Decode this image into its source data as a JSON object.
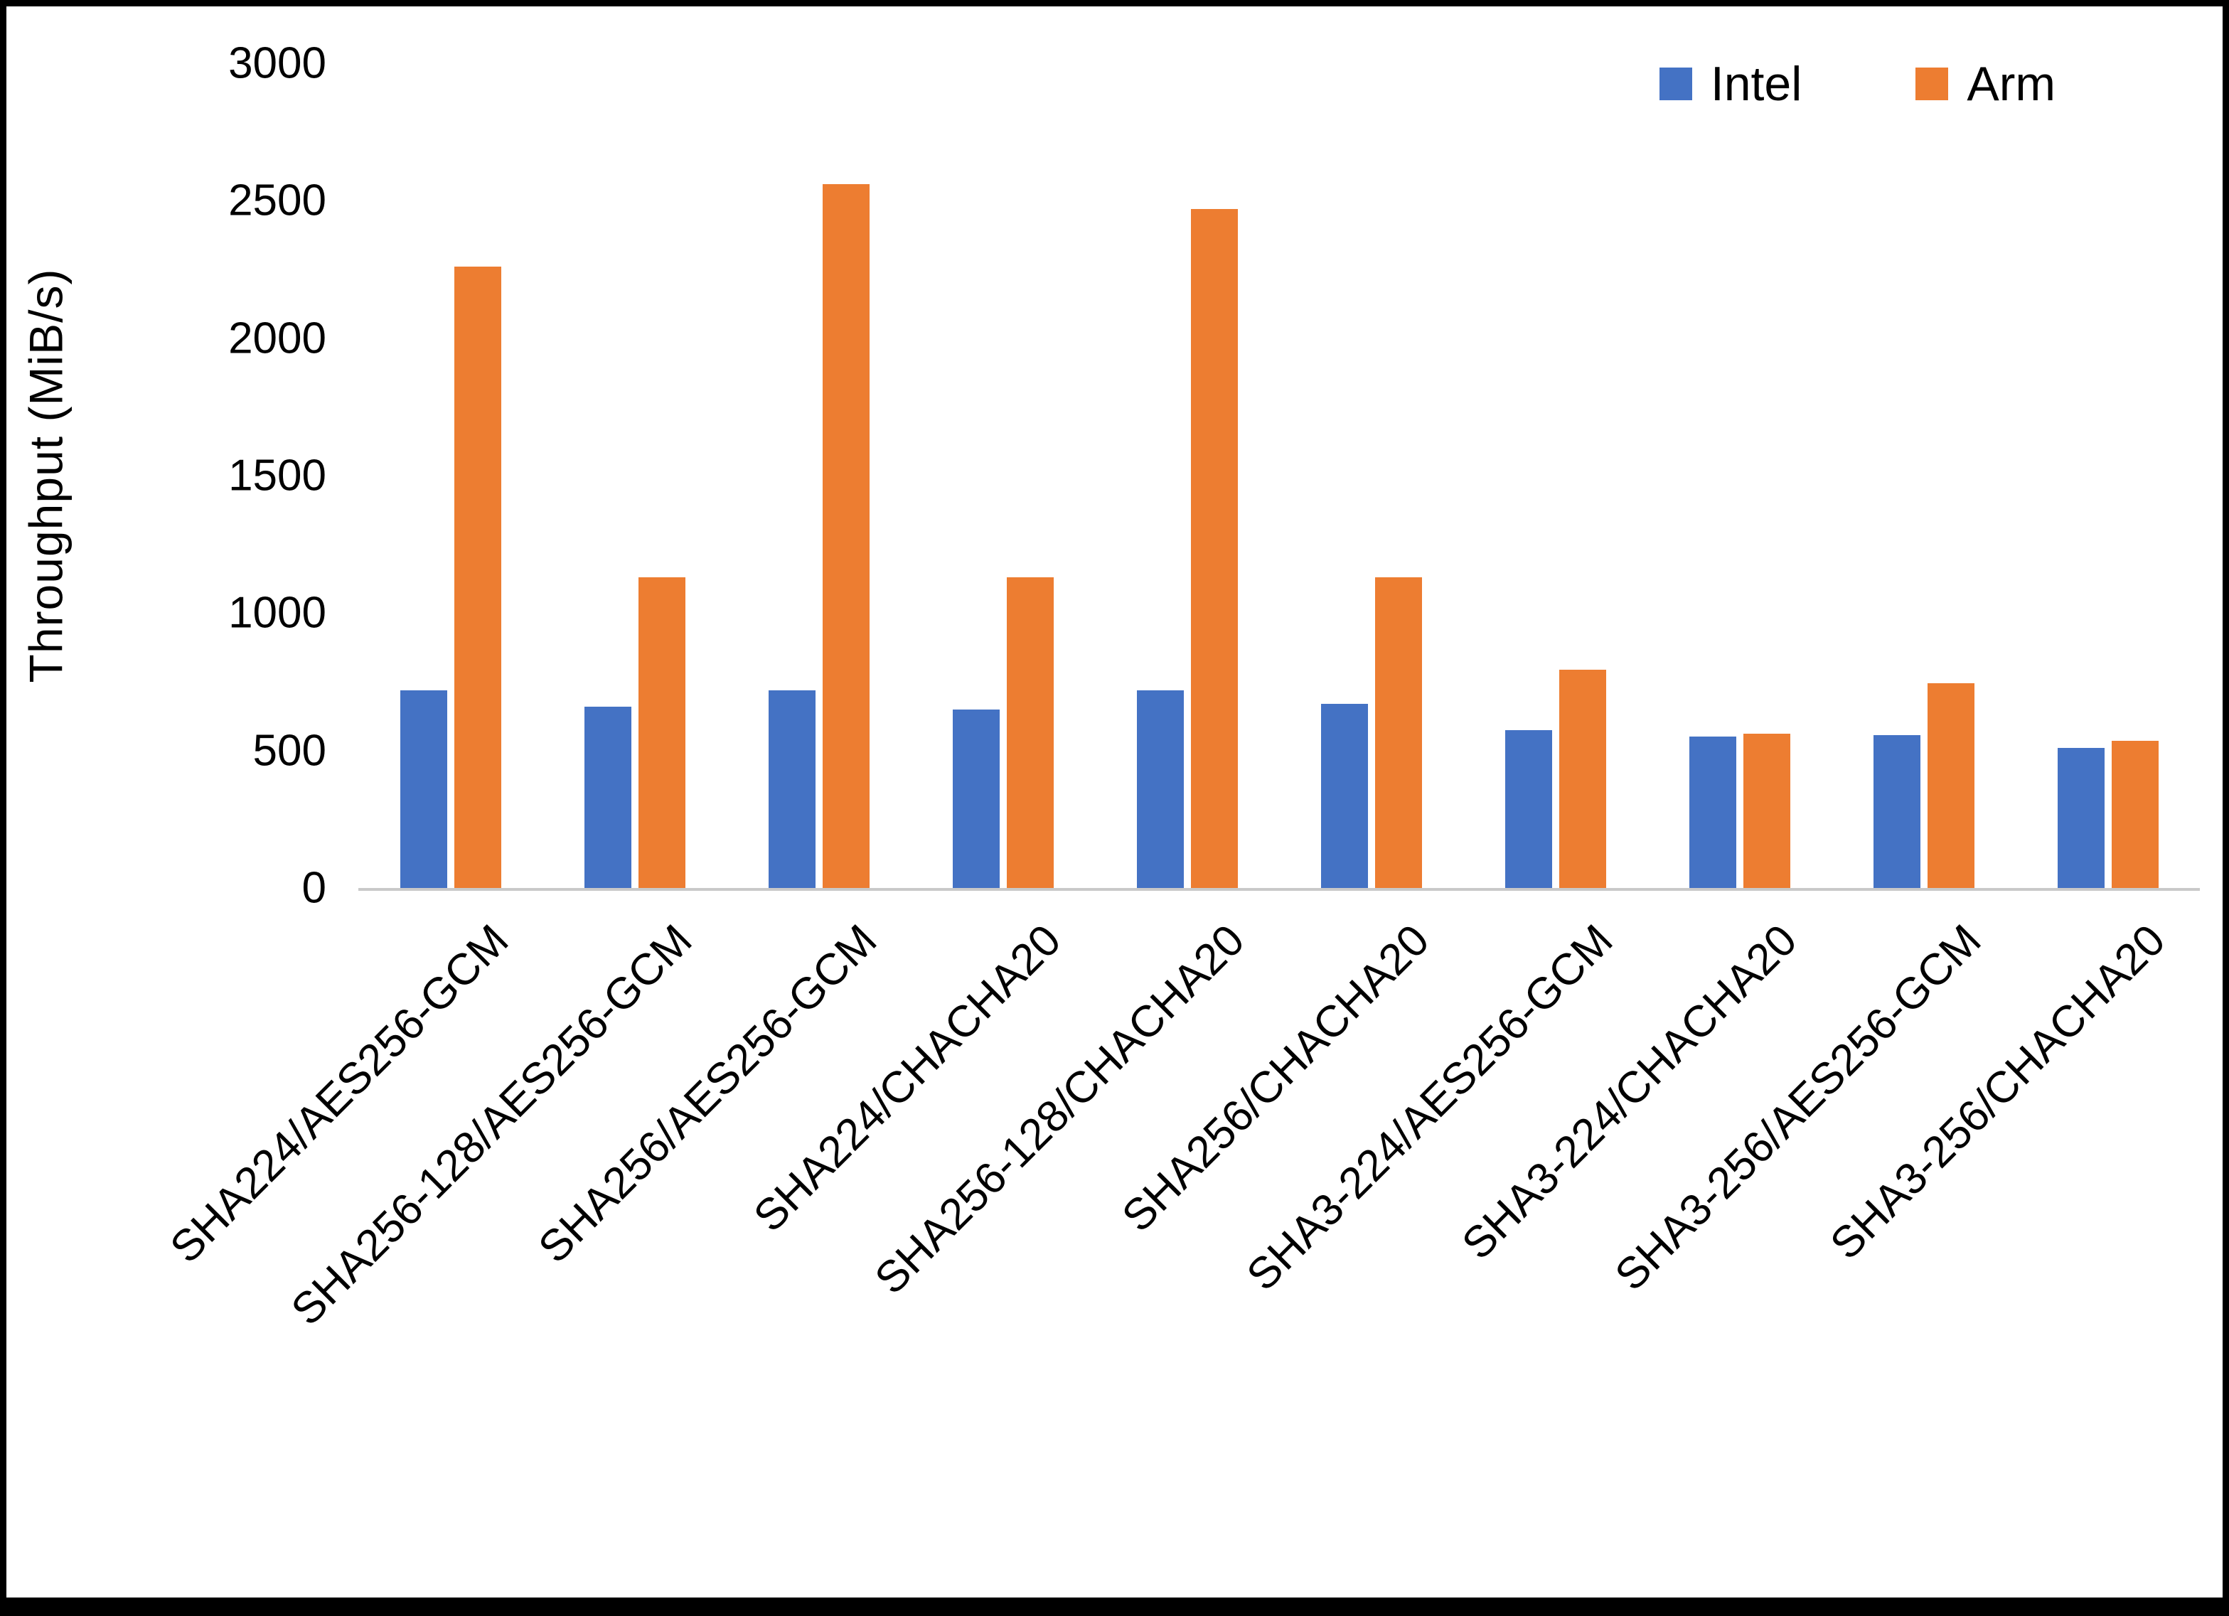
{
  "figure": {
    "background_color": "#FFFFFF",
    "border_color": "#000000"
  },
  "chart_data": {
    "type": "bar",
    "title": "",
    "xlabel": "",
    "ylabel": "Throughput (MiB/s)",
    "ylim": [
      0,
      3000
    ],
    "yticks": [
      0,
      500,
      1000,
      1500,
      2000,
      2500,
      3000
    ],
    "grid": false,
    "legend_position": "top-right",
    "axis_line_color": "#C9C9C9",
    "text_color": "#000000",
    "categories": [
      "SHA224/AES256-GCM",
      "SHA256-128/AES256-GCM",
      "SHA256/AES256-GCM",
      "SHA224/CHACHA20",
      "SHA256-128/CHACHA20",
      "SHA256/CHACHA20",
      "SHA3-224/AES256-GCM",
      "SHA3-224/CHACHA20",
      "SHA3-256/AES256-GCM",
      "SHA3-256/CHACHA20"
    ],
    "series": [
      {
        "name": "Intel",
        "color": "#4472C4",
        "values": [
          720,
          660,
          720,
          650,
          720,
          670,
          575,
          550,
          555,
          510
        ]
      },
      {
        "name": "Arm",
        "color": "#ED7D31",
        "values": [
          2260,
          1130,
          2560,
          1130,
          2470,
          1130,
          795,
          560,
          745,
          535
        ]
      }
    ]
  }
}
